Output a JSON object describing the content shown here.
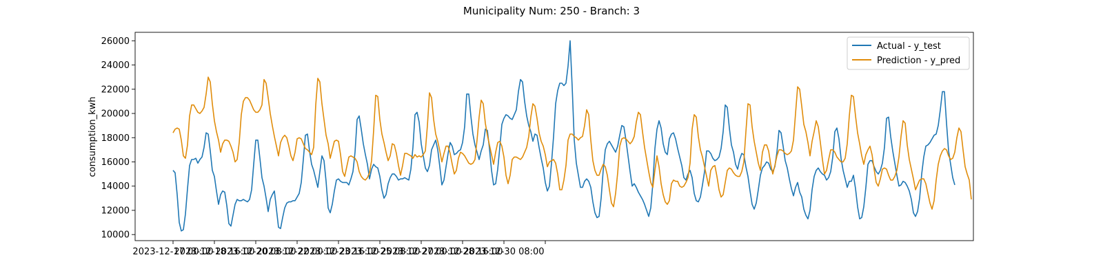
{
  "chart_data": {
    "type": "line",
    "title": "Municipality Num: 250 - Branch: 3",
    "xlabel": "",
    "ylabel": "consumption_kwh",
    "ylim": [
      9500,
      26700
    ],
    "yticks": [
      10000,
      12000,
      14000,
      16000,
      18000,
      20000,
      22000,
      24000,
      26000
    ],
    "x_start": "2023-12-17 00:00",
    "x_step_hours": 2,
    "xtick_labels": [
      "2023-12-17 00:00",
      "2023-12-18 16:00",
      "2023-12-20 08:00",
      "2023-12-22 00:00",
      "2023-12-23 16:00",
      "2023-12-25 08:00",
      "2023-12-27 00:00",
      "2023-12-28 16:00",
      "2023-12-30 08:00",
      ""
    ],
    "grid": false,
    "legend_position": "top-right",
    "series": [
      {
        "name": "Actual - y_test",
        "color": "#1f77b4",
        "values": [
          15300,
          15100,
          13300,
          11000,
          10300,
          10400,
          11700,
          13800,
          15700,
          16200,
          16200,
          16300,
          15900,
          16200,
          16400,
          17200,
          18400,
          18300,
          16900,
          15300,
          14800,
          13600,
          12500,
          13300,
          13600,
          13500,
          12400,
          10900,
          10700,
          11600,
          12500,
          12900,
          12800,
          12800,
          12900,
          12800,
          12700,
          12900,
          13700,
          15800,
          17800,
          17800,
          16300,
          14700,
          14000,
          13000,
          11900,
          12900,
          13300,
          13600,
          12100,
          10600,
          10500,
          11400,
          12200,
          12600,
          12700,
          12700,
          12800,
          12800,
          13100,
          13400,
          14300,
          16200,
          18200,
          18300,
          16900,
          15800,
          15300,
          14600,
          13900,
          15200,
          16500,
          16100,
          14400,
          12200,
          11800,
          12500,
          13600,
          14500,
          14600,
          14400,
          14300,
          14300,
          14300,
          14100,
          14600,
          15200,
          16800,
          19500,
          19800,
          18700,
          17500,
          16600,
          15800,
          14600,
          15400,
          15800,
          15600,
          15500,
          14800,
          13700,
          13000,
          13300,
          14200,
          14700,
          15000,
          15000,
          14800,
          14500,
          14600,
          14600,
          14700,
          14600,
          14500,
          15400,
          17200,
          19900,
          20100,
          19300,
          17500,
          16500,
          15500,
          15200,
          15700,
          17000,
          17400,
          17800,
          17000,
          15600,
          14100,
          14500,
          15600,
          16700,
          17600,
          17300,
          16600,
          16700,
          16900,
          17000,
          17600,
          18900,
          21600,
          21600,
          19800,
          18300,
          17400,
          16800,
          16200,
          16900,
          17400,
          18700,
          18600,
          17100,
          15300,
          14100,
          14200,
          15400,
          17200,
          19100,
          19600,
          19900,
          19800,
          19600,
          19500,
          19900,
          20300,
          21800,
          22800,
          22600,
          21000,
          19800,
          19000,
          18500,
          17700,
          18300,
          18200,
          17200,
          16300,
          15500,
          14300,
          13600,
          14000,
          15900,
          18100,
          20800,
          21900,
          22500,
          22500,
          22300,
          22500,
          23900,
          26000,
          22200,
          17800,
          15900,
          14900,
          13900,
          13900,
          14400,
          14600,
          14400,
          13900,
          12700,
          11800,
          11400,
          11500,
          13000,
          15300,
          17000,
          17500,
          17700,
          17400,
          17100,
          16800,
          17300,
          18200,
          19000,
          18900,
          17800,
          16500,
          15200,
          14000,
          14200,
          13900,
          13500,
          13200,
          12900,
          12500,
          12000,
          11500,
          12200,
          14200,
          17100,
          18700,
          19400,
          18800,
          17500,
          16800,
          16600,
          17900,
          18300,
          18400,
          17900,
          17100,
          16400,
          15700,
          14700,
          14500,
          15000,
          15300,
          14700,
          13400,
          12800,
          12700,
          13100,
          14100,
          15200,
          16900,
          16900,
          16700,
          16300,
          16100,
          16200,
          16400,
          17100,
          18500,
          20700,
          20500,
          18800,
          17400,
          16800,
          15800,
          15400,
          16200,
          16700,
          16600,
          15600,
          14800,
          13600,
          12500,
          12100,
          12600,
          13700,
          14900,
          15500,
          15700,
          16000,
          15900,
          15400,
          15200,
          15600,
          16800,
          18600,
          18400,
          17300,
          16100,
          15500,
          14600,
          13800,
          13200,
          13900,
          14300,
          13500,
          13100,
          12100,
          11600,
          11300,
          12000,
          13700,
          14800,
          15300,
          15500,
          15200,
          15000,
          14900,
          14500,
          14700,
          15200,
          16400,
          18500,
          18800,
          17900,
          16300,
          15300,
          14600,
          13900,
          14400,
          14400,
          14900,
          13800,
          12300,
          11300,
          11400,
          12300,
          13900,
          15800,
          16100,
          16100,
          15600,
          15200,
          15000,
          15300,
          15900,
          17200,
          19600,
          19700,
          18100,
          16900,
          15900,
          14900,
          14000,
          14100,
          14400,
          14300,
          14000,
          13600,
          12900,
          11800,
          11500,
          11900,
          13000,
          15000,
          16400,
          17300,
          17400,
          17600,
          17900,
          18200,
          18300,
          19000,
          20300,
          21800,
          21800,
          19200,
          16900,
          15800,
          14700,
          14100
        ]
      },
      {
        "name": "Prediction - y_pred",
        "color": "#e08c0a",
        "values": [
          18400,
          18700,
          18800,
          18700,
          17800,
          16500,
          16300,
          17400,
          19800,
          20700,
          20700,
          20400,
          20100,
          20000,
          20200,
          20500,
          21600,
          23000,
          22600,
          20800,
          19400,
          18500,
          17800,
          16800,
          17500,
          17800,
          17800,
          17700,
          17300,
          16800,
          16000,
          16200,
          17600,
          19900,
          21000,
          21300,
          21300,
          21100,
          20700,
          20300,
          20100,
          20100,
          20300,
          20700,
          22800,
          22500,
          21300,
          20000,
          19000,
          18100,
          17300,
          16500,
          17600,
          18000,
          18200,
          18000,
          17300,
          16500,
          16100,
          16800,
          17900,
          18000,
          17900,
          17500,
          17100,
          17000,
          16800,
          16600,
          17200,
          20700,
          22900,
          22600,
          20800,
          19500,
          18200,
          17500,
          16300,
          17000,
          17700,
          17800,
          17700,
          16600,
          15200,
          14800,
          15600,
          16400,
          16500,
          16400,
          16300,
          16000,
          15200,
          14800,
          14600,
          14500,
          14700,
          15100,
          16100,
          18600,
          21500,
          21400,
          19500,
          18300,
          17600,
          16800,
          16100,
          16500,
          17500,
          17400,
          16700,
          15700,
          14900,
          15700,
          16700,
          16700,
          16600,
          16500,
          16300,
          16600,
          16400,
          16500,
          16400,
          16600,
          16900,
          19000,
          21700,
          21300,
          19500,
          18300,
          17700,
          16900,
          16000,
          16700,
          17300,
          17300,
          16700,
          15800,
          15000,
          15300,
          16300,
          16800,
          16700,
          16500,
          16200,
          15900,
          15800,
          15900,
          16200,
          17800,
          19700,
          21100,
          20800,
          19200,
          18200,
          17400,
          16600,
          15800,
          16800,
          17600,
          17700,
          17300,
          16400,
          14900,
          14200,
          14900,
          16200,
          16400,
          16400,
          16300,
          16200,
          16400,
          16800,
          17200,
          18100,
          19700,
          20800,
          20600,
          19600,
          18400,
          17700,
          17300,
          16600,
          15600,
          16000,
          16100,
          16200,
          15900,
          15000,
          13700,
          13700,
          14500,
          15700,
          17800,
          18300,
          18300,
          18100,
          18000,
          17800,
          18000,
          18100,
          19000,
          20300,
          19900,
          17800,
          16100,
          15300,
          14900,
          14900,
          15400,
          15800,
          15600,
          14900,
          13700,
          12600,
          12300,
          13400,
          15100,
          17300,
          17900,
          18000,
          17900,
          17700,
          17500,
          17700,
          18100,
          19300,
          20100,
          19900,
          18500,
          17200,
          16200,
          15200,
          14300,
          13900,
          15300,
          16500,
          15600,
          14200,
          13300,
          12700,
          12500,
          12800,
          14200,
          14500,
          14400,
          14400,
          14000,
          13900,
          14000,
          14300,
          14700,
          15900,
          18700,
          19900,
          19700,
          18100,
          17000,
          16400,
          15600,
          14800,
          14000,
          15300,
          15600,
          15700,
          14800,
          13700,
          13100,
          13300,
          14300,
          15300,
          15500,
          15400,
          15100,
          14900,
          14800,
          14800,
          15200,
          16000,
          18500,
          20800,
          20700,
          18900,
          17700,
          16800,
          15900,
          15300,
          16800,
          17400,
          17400,
          16900,
          15800,
          15000,
          15700,
          16500,
          17000,
          17000,
          16900,
          16700,
          16600,
          16700,
          16900,
          17800,
          20000,
          22200,
          22000,
          20600,
          19100,
          18500,
          17600,
          16500,
          17700,
          18500,
          19400,
          18900,
          17600,
          16200,
          15000,
          15300,
          16200,
          17000,
          17000,
          16800,
          16400,
          16200,
          16000,
          16000,
          16300,
          17500,
          19800,
          21500,
          21400,
          19800,
          18400,
          17500,
          16500,
          15800,
          16600,
          17000,
          17300,
          16600,
          15400,
          14300,
          14000,
          14600,
          15400,
          15500,
          15400,
          14900,
          14500,
          14500,
          14800,
          15300,
          16400,
          18100,
          19400,
          19200,
          17400,
          16200,
          15400,
          14600,
          13700,
          14100,
          14500,
          14600,
          14600,
          14200,
          13400,
          12600,
          12100,
          12800,
          14500,
          15800,
          16500,
          16900,
          17100,
          17000,
          16500,
          16200,
          16300,
          16800,
          18000,
          18800,
          18500,
          17000,
          15600,
          15000,
          14500,
          12900
        ]
      }
    ]
  }
}
